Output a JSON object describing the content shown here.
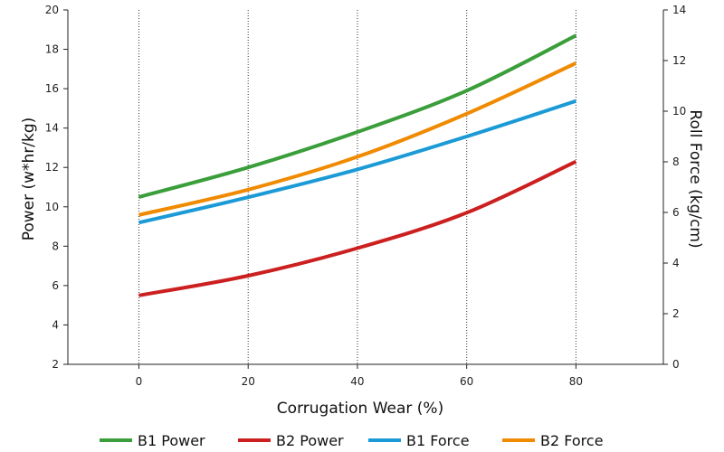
{
  "chart_data": {
    "type": "line",
    "title": "",
    "xlabel": "Corrugation Wear (%)",
    "ylabel_left": "Power (w*hr/kg)",
    "ylabel_right": "Roll Force (kg/cm)",
    "xlim": [
      -13,
      96
    ],
    "x_ticks": [
      0,
      20,
      40,
      60,
      80
    ],
    "ylim_left": [
      2,
      20
    ],
    "y_ticks_left": [
      2,
      4,
      6,
      8,
      10,
      12,
      14,
      16,
      18,
      20
    ],
    "ylim_right": [
      0,
      14
    ],
    "y_ticks_right": [
      0,
      2,
      4,
      6,
      8,
      10,
      12,
      14
    ],
    "grid": "vertical-dotted",
    "legend_position": "bottom",
    "series": [
      {
        "name": "B1 Power",
        "axis": "left",
        "color": "#3a9e3a",
        "x": [
          0,
          20,
          40,
          60,
          80
        ],
        "values": [
          10.5,
          12.0,
          13.8,
          15.9,
          18.7
        ]
      },
      {
        "name": "B2 Power",
        "axis": "left",
        "color": "#cc1f1f",
        "x": [
          0,
          20,
          40,
          60,
          80
        ],
        "values": [
          5.5,
          6.5,
          7.9,
          9.7,
          12.3
        ]
      },
      {
        "name": "B1 Force",
        "axis": "right",
        "color": "#1a9ad6",
        "x": [
          0,
          20,
          40,
          60,
          80
        ],
        "values": [
          5.6,
          6.6,
          7.7,
          9.0,
          10.4
        ]
      },
      {
        "name": "B2 Force",
        "axis": "right",
        "color": "#f08a00",
        "x": [
          0,
          20,
          40,
          60,
          80
        ],
        "values": [
          5.9,
          6.9,
          8.2,
          9.9,
          11.9
        ]
      }
    ]
  }
}
